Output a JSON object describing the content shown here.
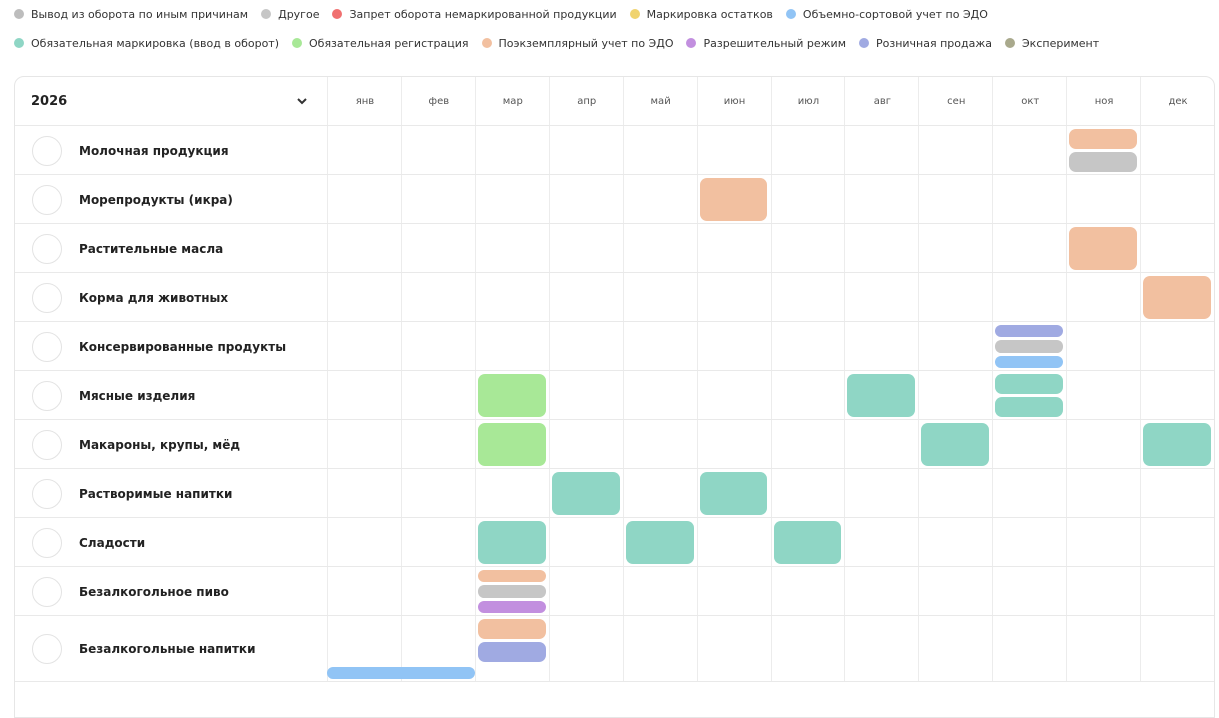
{
  "legend": [
    {
      "name": "Вывод из оборота по иным причинам",
      "color": "#bdbdbd"
    },
    {
      "name": "Другое",
      "color": "#c6c6c6"
    },
    {
      "name": "Запрет оборота немаркированной продукции",
      "color": "#f07070"
    },
    {
      "name": "Маркировка остатков",
      "color": "#f0d36e"
    },
    {
      "name": "Объемно-сортовой учет по ЭДО",
      "color": "#91c4f5"
    },
    {
      "name": "Обязательная маркировка (ввод в оборот)",
      "color": "#8fd6c5"
    },
    {
      "name": "Обязательная регистрация",
      "color": "#a8e897"
    },
    {
      "name": "Поэкземплярный учет по ЭДО",
      "color": "#f2c0a0"
    },
    {
      "name": "Разрешительный режим",
      "color": "#c28fdf"
    },
    {
      "name": "Розничная продажа",
      "color": "#a0aae2"
    },
    {
      "name": "Эксперимент",
      "color": "#a9a98c"
    }
  ],
  "year": "2026",
  "months": [
    "янв",
    "фев",
    "мар",
    "апр",
    "май",
    "июн",
    "июл",
    "авг",
    "сен",
    "окт",
    "ноя",
    "дек"
  ],
  "rows": [
    {
      "name": "Молочная продукция",
      "cells": [
        {
          "month": "ноя",
          "types": [
            "Поэкземплярный учет по ЭДО",
            "Другое"
          ]
        }
      ]
    },
    {
      "name": "Морепродукты (икра)",
      "cells": [
        {
          "month": "июн",
          "types": [
            "Поэкземплярный учет по ЭДО"
          ]
        }
      ]
    },
    {
      "name": "Растительные масла",
      "cells": [
        {
          "month": "ноя",
          "types": [
            "Поэкземплярный учет по ЭДО"
          ]
        }
      ]
    },
    {
      "name": "Корма для животных",
      "cells": [
        {
          "month": "дек",
          "types": [
            "Поэкземплярный учет по ЭДО"
          ]
        }
      ]
    },
    {
      "name": "Консервированные продукты",
      "cells": [
        {
          "month": "окт",
          "types": [
            "Розничная продажа",
            "Другое",
            "Объемно-сортовой учет по ЭДО"
          ]
        }
      ]
    },
    {
      "name": "Мясные изделия",
      "cells": [
        {
          "month": "мар",
          "types": [
            "Обязательная регистрация"
          ]
        },
        {
          "month": "авг",
          "types": [
            "Обязательная маркировка (ввод в оборот)"
          ]
        },
        {
          "month": "окт",
          "types": [
            "Обязательная маркировка (ввод в оборот)",
            "Обязательная маркировка (ввод в оборот)"
          ]
        }
      ]
    },
    {
      "name": "Макароны, крупы, мёд",
      "cells": [
        {
          "month": "мар",
          "types": [
            "Обязательная регистрация"
          ]
        },
        {
          "month": "сен",
          "types": [
            "Обязательная маркировка (ввод в оборот)"
          ]
        },
        {
          "month": "дек",
          "types": [
            "Обязательная маркировка (ввод в оборот)"
          ]
        }
      ]
    },
    {
      "name": "Растворимые напитки",
      "cells": [
        {
          "month": "апр",
          "types": [
            "Обязательная маркировка (ввод в оборот)"
          ]
        },
        {
          "month": "июн",
          "types": [
            "Обязательная маркировка (ввод в оборот)"
          ]
        }
      ]
    },
    {
      "name": "Сладости",
      "cells": [
        {
          "month": "мар",
          "types": [
            "Обязательная маркировка (ввод в оборот)"
          ]
        },
        {
          "month": "май",
          "types": [
            "Обязательная маркировка (ввод в оборот)"
          ]
        },
        {
          "month": "июл",
          "types": [
            "Обязательная маркировка (ввод в оборот)"
          ]
        }
      ]
    },
    {
      "name": "Безалкогольное пиво",
      "cells": [
        {
          "month": "мар",
          "types": [
            "Поэкземплярный учет по ЭДО",
            "Другое",
            "Разрешительный режим"
          ]
        }
      ]
    },
    {
      "name": "Безалкогольные напитки",
      "cells": [
        {
          "month": "мар",
          "types": [
            "Поэкземплярный учет по ЭДО",
            "Розничная продажа"
          ]
        },
        {
          "month": "янв",
          "to": "фев",
          "types": [
            "Объемно-сортовой учет по ЭДО"
          ]
        }
      ]
    }
  ]
}
